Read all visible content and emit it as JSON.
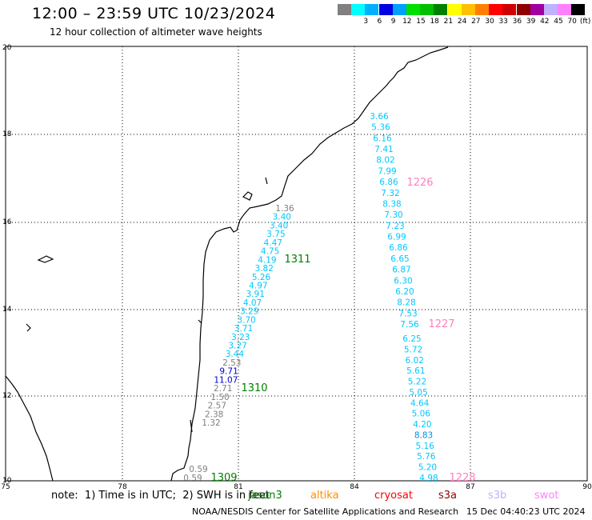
{
  "header": {
    "title": "12:00 – 23:59 UTC 10/23/2024",
    "subtitle": "12 hour collection of altimeter wave heights"
  },
  "legend": {
    "unit": "(ft)",
    "items": [
      {
        "color": "#808080",
        "label": ""
      },
      {
        "color": "#00ffff",
        "label": "3"
      },
      {
        "color": "#00b0ff",
        "label": "6"
      },
      {
        "color": "#0000e0",
        "label": "9"
      },
      {
        "color": "#00a0ff",
        "label": "12"
      },
      {
        "color": "#00e000",
        "label": "15"
      },
      {
        "color": "#00c000",
        "label": "18"
      },
      {
        "color": "#008000",
        "label": "21"
      },
      {
        "color": "#ffff00",
        "label": "24"
      },
      {
        "color": "#ffc000",
        "label": "27"
      },
      {
        "color": "#ff8000",
        "label": "30"
      },
      {
        "color": "#ff0000",
        "label": "33"
      },
      {
        "color": "#d00000",
        "label": "36"
      },
      {
        "color": "#900000",
        "label": "39"
      },
      {
        "color": "#a000a0",
        "label": "42"
      },
      {
        "color": "#c0b0ff",
        "label": "45"
      },
      {
        "color": "#ff80ff",
        "label": "70"
      },
      {
        "color": "#000000",
        "label": ""
      }
    ]
  },
  "axes": {
    "lon_ticks": [
      "75",
      "78",
      "81",
      "84",
      "87",
      "90"
    ],
    "lat_ticks": [
      "20",
      "18",
      "16",
      "14",
      "12",
      "10"
    ]
  },
  "tracks": [
    {
      "time": "1311",
      "color": "#008000",
      "values": [
        "1.36",
        "3.40",
        "3.40",
        "3.75",
        "4.47",
        "4.75",
        "4.19",
        "3.82",
        "5.26",
        "4.97",
        "3.91",
        "4.07",
        "3.29",
        "3.70",
        "3.71",
        "3.23",
        "3.27",
        "3.44",
        "2.53",
        "9.71",
        "11.07",
        "2.71",
        "1.50",
        "2.57",
        "2.38",
        "1.32"
      ]
    },
    {
      "time": "1310",
      "color": "#008000"
    },
    {
      "time": "1309",
      "color": "#008000",
      "values": [
        "0.59",
        "0.59"
      ]
    },
    {
      "time": "1226",
      "color": "#ff80c0",
      "values": [
        "3.66",
        "5.36",
        "6.16",
        "7.41",
        "8.02",
        "7.99",
        "6.86",
        "7.32",
        "8.38",
        "7.30",
        "7.23",
        "6.99",
        "6.86",
        "6.65",
        "6.87",
        "6.30",
        "6.20",
        "8.28",
        "7.53",
        "7.56"
      ]
    },
    {
      "time": "1227",
      "color": "#ff80c0",
      "values": [
        "6.25",
        "5.72",
        "6.02",
        "5.61",
        "5.22",
        "5.05",
        "4.64",
        "5.06",
        "4.20",
        "8.83",
        "5.16",
        "5.76",
        "5.20",
        "4.98"
      ]
    },
    {
      "time": "1228",
      "color": "#ff80c0"
    }
  ],
  "footer": {
    "note": "note:  1) Time is in UTC;  2) SWH is in feet",
    "satellites": [
      {
        "name": "jason3",
        "color": "#008000"
      },
      {
        "name": "altika",
        "color": "#ff8c00"
      },
      {
        "name": "cryosat",
        "color": "#ff0000"
      },
      {
        "name": "s3a",
        "color": "#900000"
      },
      {
        "name": "s3b",
        "color": "#c0b0ff"
      },
      {
        "name": "swot",
        "color": "#ff80ff"
      }
    ],
    "credit": "NOAA/NESDIS Center for Satellite Applications and Research",
    "timestamp": "15 Dec 04:40:23 UTC 2024"
  }
}
